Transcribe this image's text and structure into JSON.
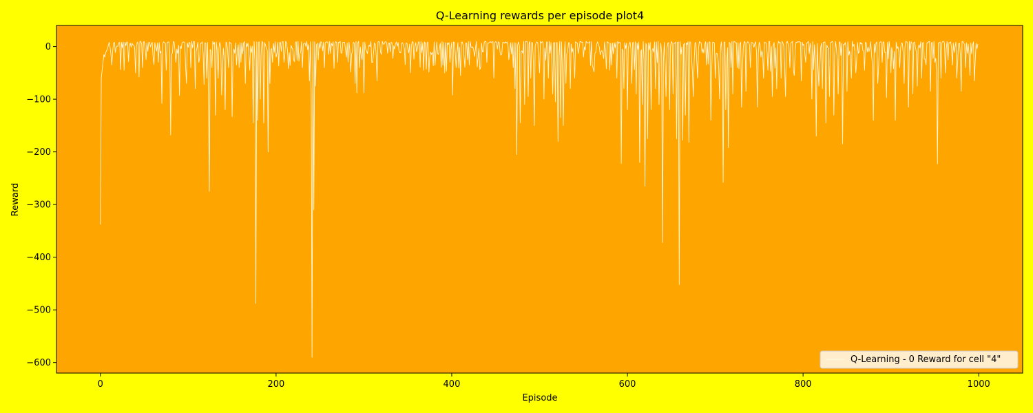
{
  "chart_data": {
    "type": "line",
    "title": "Q-Learning rewards per episode plot4",
    "xlabel": "Episode",
    "ylabel": "Reward",
    "xlim": [
      -50,
      1050
    ],
    "ylim": [
      -620,
      40
    ],
    "xticks": [
      0,
      200,
      400,
      600,
      800,
      1000
    ],
    "yticks": [
      0,
      -100,
      -200,
      -300,
      -400,
      -500,
      -600
    ],
    "grid": false,
    "legend_position": "lower-right",
    "colors": {
      "figure_bg": "#ffff00",
      "axes_bg": "#ffa500",
      "line": "#fff8dc"
    },
    "series": [
      {
        "name": "Q-Learning - 0 Reward for cell \"4\"",
        "x_start": 0,
        "x_step": 1,
        "baseline": 10,
        "values_sparse": [
          [
            0,
            -338
          ],
          [
            1,
            -60
          ],
          [
            2,
            -45
          ],
          [
            3,
            -30
          ],
          [
            4,
            -15
          ],
          [
            5,
            -20
          ],
          [
            6,
            -12
          ],
          [
            7,
            -8
          ],
          [
            8,
            -5
          ],
          [
            9,
            2
          ],
          [
            10,
            8
          ],
          [
            13,
            -35
          ],
          [
            16,
            8
          ],
          [
            22,
            8
          ],
          [
            40,
            -50
          ],
          [
            44,
            -58
          ],
          [
            48,
            -40
          ],
          [
            52,
            -25
          ],
          [
            60,
            -20
          ],
          [
            70,
            -108
          ],
          [
            75,
            -45
          ],
          [
            80,
            -168
          ],
          [
            86,
            -30
          ],
          [
            90,
            -93
          ],
          [
            98,
            -70
          ],
          [
            103,
            -40
          ],
          [
            108,
            -80
          ],
          [
            112,
            -30
          ],
          [
            118,
            -72
          ],
          [
            121,
            -60
          ],
          [
            123,
            -85
          ],
          [
            124,
            -275
          ],
          [
            127,
            -40
          ],
          [
            131,
            -130
          ],
          [
            134,
            -60
          ],
          [
            138,
            -92
          ],
          [
            142,
            -120
          ],
          [
            146,
            -40
          ],
          [
            150,
            -133
          ],
          [
            155,
            -35
          ],
          [
            160,
            -30
          ],
          [
            165,
            -70
          ],
          [
            170,
            -45
          ],
          [
            174,
            -145
          ],
          [
            176,
            -25
          ],
          [
            177,
            -488
          ],
          [
            179,
            -140
          ],
          [
            182,
            -100
          ],
          [
            186,
            -145
          ],
          [
            191,
            -200
          ],
          [
            193,
            -70
          ],
          [
            196,
            -30
          ],
          [
            200,
            -20
          ],
          [
            210,
            -15
          ],
          [
            220,
            -25
          ],
          [
            230,
            -40
          ],
          [
            238,
            -65
          ],
          [
            240,
            -90
          ],
          [
            241,
            -590
          ],
          [
            243,
            -310
          ],
          [
            245,
            -75
          ],
          [
            248,
            -25
          ],
          [
            255,
            -40
          ],
          [
            260,
            -15
          ],
          [
            270,
            -30
          ],
          [
            280,
            -20
          ],
          [
            290,
            -70
          ],
          [
            292,
            -88
          ],
          [
            295,
            -40
          ],
          [
            300,
            -88
          ],
          [
            310,
            -30
          ],
          [
            315,
            -65
          ],
          [
            320,
            -15
          ],
          [
            330,
            -10
          ],
          [
            340,
            -8
          ],
          [
            350,
            -5
          ],
          [
            360,
            -10
          ],
          [
            368,
            -45
          ],
          [
            375,
            -20
          ],
          [
            385,
            -15
          ],
          [
            392,
            -50
          ],
          [
            398,
            -30
          ],
          [
            401,
            -92
          ],
          [
            405,
            -40
          ],
          [
            410,
            -55
          ],
          [
            420,
            -35
          ],
          [
            430,
            -20
          ],
          [
            440,
            -30
          ],
          [
            448,
            -60
          ],
          [
            455,
            -10
          ],
          [
            465,
            -25
          ],
          [
            470,
            -40
          ],
          [
            472,
            -80
          ],
          [
            474,
            -205
          ],
          [
            478,
            -145
          ],
          [
            483,
            -110
          ],
          [
            487,
            -95
          ],
          [
            490,
            -60
          ],
          [
            494,
            -150
          ],
          [
            500,
            -50
          ],
          [
            505,
            -100
          ],
          [
            510,
            -60
          ],
          [
            515,
            -90
          ],
          [
            518,
            -105
          ],
          [
            521,
            -180
          ],
          [
            524,
            -135
          ],
          [
            527,
            -150
          ],
          [
            530,
            -70
          ],
          [
            535,
            -80
          ],
          [
            540,
            -60
          ],
          [
            550,
            -20
          ],
          [
            560,
            -35
          ],
          [
            570,
            -10
          ],
          [
            580,
            -45
          ],
          [
            588,
            -60
          ],
          [
            593,
            -222
          ],
          [
            596,
            -80
          ],
          [
            600,
            -120
          ],
          [
            605,
            -70
          ],
          [
            610,
            -90
          ],
          [
            614,
            -220
          ],
          [
            617,
            -110
          ],
          [
            620,
            -265
          ],
          [
            623,
            -175
          ],
          [
            627,
            -120
          ],
          [
            632,
            -80
          ],
          [
            636,
            -110
          ],
          [
            640,
            -372
          ],
          [
            644,
            -95
          ],
          [
            648,
            -120
          ],
          [
            652,
            -90
          ],
          [
            656,
            -175
          ],
          [
            659,
            -452
          ],
          [
            663,
            -178
          ],
          [
            666,
            -130
          ],
          [
            670,
            -182
          ],
          [
            675,
            -95
          ],
          [
            680,
            -60
          ],
          [
            690,
            -35
          ],
          [
            695,
            -140
          ],
          [
            700,
            -60
          ],
          [
            705,
            -100
          ],
          [
            709,
            -258
          ],
          [
            712,
            -120
          ],
          [
            715,
            -192
          ],
          [
            720,
            -90
          ],
          [
            725,
            -40
          ],
          [
            730,
            -115
          ],
          [
            735,
            -85
          ],
          [
            740,
            -40
          ],
          [
            748,
            -115
          ],
          [
            755,
            -60
          ],
          [
            760,
            -45
          ],
          [
            765,
            -95
          ],
          [
            770,
            -80
          ],
          [
            775,
            -60
          ],
          [
            780,
            -95
          ],
          [
            785,
            -40
          ],
          [
            790,
            -55
          ],
          [
            798,
            -65
          ],
          [
            803,
            -30
          ],
          [
            810,
            -100
          ],
          [
            815,
            -170
          ],
          [
            818,
            -75
          ],
          [
            822,
            -80
          ],
          [
            826,
            -145
          ],
          [
            830,
            -95
          ],
          [
            835,
            -130
          ],
          [
            840,
            -90
          ],
          [
            845,
            -185
          ],
          [
            850,
            -85
          ],
          [
            855,
            -60
          ],
          [
            860,
            -50
          ],
          [
            870,
            -45
          ],
          [
            880,
            -140
          ],
          [
            885,
            -70
          ],
          [
            890,
            -30
          ],
          [
            895,
            -97
          ],
          [
            900,
            -50
          ],
          [
            905,
            -140
          ],
          [
            910,
            -40
          ],
          [
            915,
            -70
          ],
          [
            920,
            -115
          ],
          [
            925,
            -90
          ],
          [
            930,
            -75
          ],
          [
            935,
            -60
          ],
          [
            940,
            -35
          ],
          [
            945,
            -85
          ],
          [
            950,
            -30
          ],
          [
            953,
            -223
          ],
          [
            957,
            -60
          ],
          [
            962,
            -50
          ],
          [
            970,
            -35
          ],
          [
            975,
            -60
          ],
          [
            980,
            -85
          ],
          [
            985,
            -40
          ],
          [
            990,
            -55
          ],
          [
            995,
            -65
          ],
          [
            999,
            5
          ]
        ]
      }
    ]
  }
}
